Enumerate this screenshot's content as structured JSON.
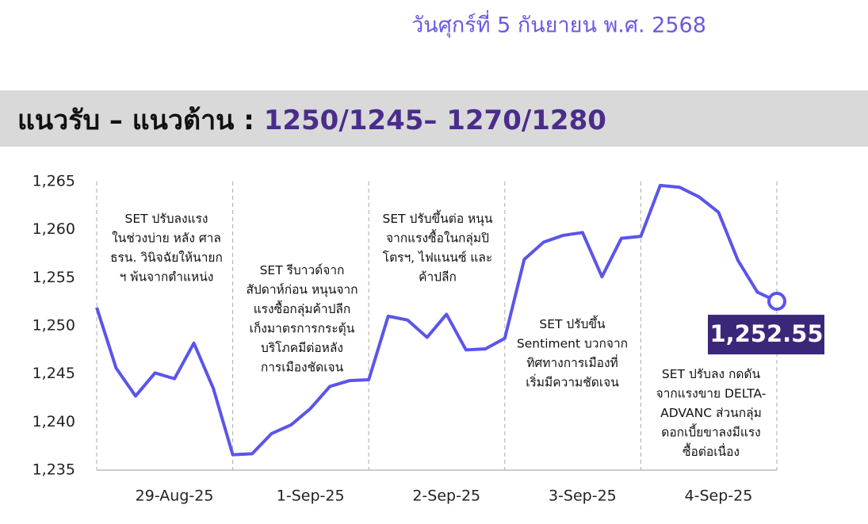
{
  "header": {
    "date": "วันศุกร์ที่ 5 กันยายน พ.ศ. 2568",
    "banner_label": "แนวรับ – แนวต้าน : ",
    "banner_levels": "1250/1245– 1270/1280"
  },
  "chart_data": {
    "type": "line",
    "categories": [
      null,
      null,
      null,
      null,
      "29-Aug-25",
      null,
      null,
      null,
      null,
      null,
      null,
      "1-Sep-25",
      null,
      null,
      null,
      null,
      null,
      null,
      "2-Sep-25",
      null,
      null,
      null,
      null,
      null,
      null,
      "3-Sep-25",
      null,
      null,
      null,
      null,
      null,
      null,
      "4-Sep-25",
      null,
      null,
      null
    ],
    "series": [
      {
        "name": "SET",
        "color": "#5a55ea",
        "values": [
          1251.9,
          1245.6,
          1242.7,
          1245.1,
          1244.5,
          1248.2,
          1243.5,
          1236.6,
          1236.7,
          1238.8,
          1239.7,
          1241.4,
          1243.7,
          1244.3,
          1244.4,
          1251.0,
          1250.6,
          1248.8,
          1251.2,
          1247.5,
          1247.6,
          1248.7,
          1256.9,
          1258.7,
          1259.4,
          1259.7,
          1255.1,
          1259.1,
          1259.3,
          1264.6,
          1264.4,
          1263.4,
          1261.8,
          1256.8,
          1253.5,
          1252.55
        ],
        "value_labels": [
          null,
          null,
          null,
          null,
          null,
          null,
          null,
          null,
          null,
          null,
          null,
          null,
          null,
          null,
          null,
          null,
          null,
          null,
          null,
          null,
          null,
          null,
          null,
          null,
          null,
          null,
          null,
          null,
          null,
          null,
          null,
          null,
          null,
          null,
          null,
          "1,252.55"
        ]
      }
    ],
    "ylim": [
      1235,
      1265
    ],
    "yticks": [
      {
        "value": 1235,
        "label": "1,235"
      },
      {
        "value": 1240,
        "label": "1,240"
      },
      {
        "value": 1245,
        "label": "1,245"
      },
      {
        "value": 1250,
        "label": "1,250"
      },
      {
        "value": 1255,
        "label": "1,255"
      },
      {
        "value": 1260,
        "label": "1,260"
      },
      {
        "value": 1265,
        "label": "1,265"
      }
    ],
    "annotations": [
      {
        "lines": [
          "SET ปรับลงแรง",
          "ในช่วงบ่าย หลัง ศาล",
          "ธรน. วินิจฉัยให้นายก",
          "ฯ พ้นจากตำแหน่ง"
        ]
      },
      {
        "lines": [
          "SET รีบาวด์จาก",
          "สัปดาห์ก่อน หนุนจาก",
          "แรงซื้อกลุ่มค้าปลีก",
          "เก็งมาตรการกระตุ้น",
          "บริโภคมีต่อหลัง",
          "การเมืองชัดเจน"
        ]
      },
      {
        "lines": [
          "SET ปรับขึ้นต่อ หนุน",
          "จากแรงซื้อในกลุ่มปิ",
          "โตรฯ, ไฟแนนซ์ และ",
          "ค้าปลีก"
        ]
      },
      {
        "lines": [
          "SET ปรับขึ้น",
          "Sentiment บวกจาก",
          "ทิศทางการเมืองที่",
          "เริ่มมีความชัดเจน"
        ]
      },
      {
        "lines": [
          "SET ปรับลง กดดัน",
          "จากแรงขาย DELTA-",
          "ADVANC ส่วนกลุ่ม",
          "ดอกเบี้ยขาลงมีแรง",
          "ซื้อต่อเนื่อง"
        ]
      }
    ]
  }
}
